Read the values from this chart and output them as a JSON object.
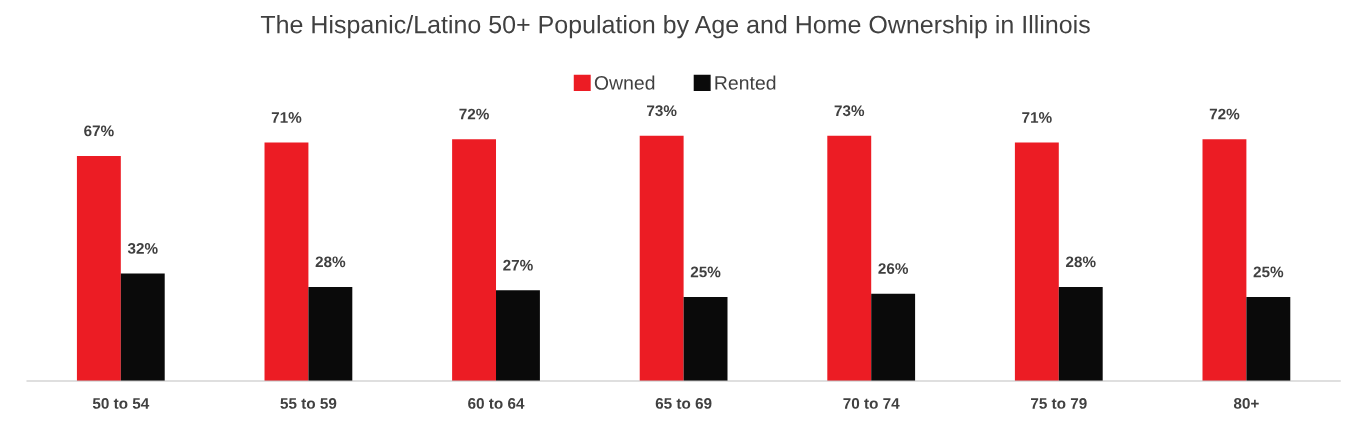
{
  "chart_data": {
    "type": "bar",
    "title": "The Hispanic/Latino 50+ Population by Age and Home Ownership in Illinois",
    "categories": [
      "50 to 54",
      "55 to 59",
      "60 to 64",
      "65 to 69",
      "70 to 74",
      "75 to 79",
      "80+"
    ],
    "series": [
      {
        "name": "Owned",
        "color": "#ec1c24",
        "values": [
          67,
          71,
          72,
          73,
          73,
          71,
          72
        ],
        "value_labels": [
          "67%",
          "71%",
          "72%",
          "73%",
          "73%",
          "71%",
          "72%"
        ]
      },
      {
        "name": "Rented",
        "color": "#0a0a0a",
        "values": [
          32,
          28,
          27,
          25,
          26,
          28,
          25
        ],
        "value_labels": [
          "32%",
          "28%",
          "27%",
          "25%",
          "26%",
          "28%",
          "25%"
        ]
      }
    ],
    "legend": "top",
    "grid": false
  }
}
